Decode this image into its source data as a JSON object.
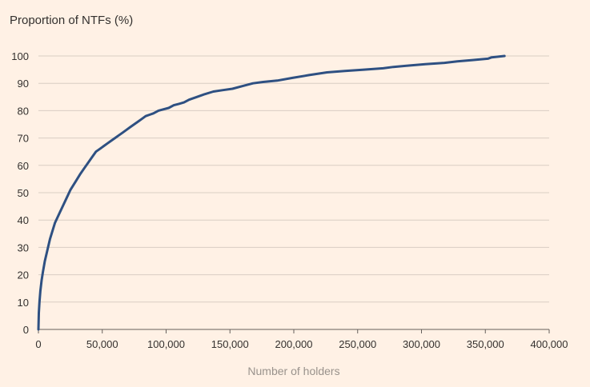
{
  "chart_data": {
    "type": "line",
    "title": "",
    "ylabel": "Proportion of NTFs (%)",
    "xlabel": "Number of holders",
    "xlim": [
      0,
      400000
    ],
    "ylim": [
      0,
      100
    ],
    "x_ticks": [
      0,
      50000,
      100000,
      150000,
      200000,
      250000,
      300000,
      350000,
      400000
    ],
    "x_tick_labels": [
      "0",
      "50,000",
      "100,000",
      "150,000",
      "200,000",
      "250,000",
      "300,000",
      "350,000",
      "400,000"
    ],
    "y_ticks": [
      0,
      10,
      20,
      30,
      40,
      50,
      60,
      70,
      80,
      90,
      100
    ],
    "y_tick_labels": [
      "0",
      "10",
      "20",
      "30",
      "40",
      "50",
      "60",
      "70",
      "80",
      "90",
      "100"
    ],
    "grid": "horizontal",
    "legend": "none",
    "series": [
      {
        "color": "#2E5082",
        "x": [
          0,
          300,
          800,
          1500,
          2500,
          3500,
          5000,
          7000,
          9000,
          11000,
          13000,
          17000,
          21000,
          25000,
          29000,
          33000,
          36000,
          39000,
          42000,
          45000,
          48000,
          51000,
          54000,
          57000,
          60000,
          63000,
          66000,
          69000,
          72000,
          75000,
          78000,
          81000,
          84000,
          87000,
          90000,
          94000,
          98000,
          102000,
          106000,
          110000,
          114000,
          118000,
          124000,
          130000,
          137000,
          144000,
          152000,
          160000,
          168000,
          176000,
          187000,
          199000,
          212000,
          226000,
          240000,
          255000,
          270000,
          278000,
          290000,
          303000,
          318000,
          328000,
          340000,
          352000,
          355000,
          365000
        ],
        "y": [
          0,
          6,
          10,
          14,
          18,
          21,
          25,
          29,
          33,
          36,
          39,
          43,
          47,
          51,
          54,
          57,
          59,
          61,
          63,
          65,
          66,
          67,
          68,
          69,
          70,
          71,
          72,
          73,
          74,
          75,
          76,
          77,
          78,
          78.5,
          79,
          80,
          80.5,
          81,
          82,
          82.5,
          83,
          84,
          85,
          86,
          87,
          87.5,
          88,
          89,
          90,
          90.5,
          91,
          92,
          93,
          94,
          94.5,
          95,
          95.5,
          96,
          96.5,
          97,
          97.5,
          98,
          98.5,
          99,
          99.5,
          100
        ]
      }
    ]
  }
}
